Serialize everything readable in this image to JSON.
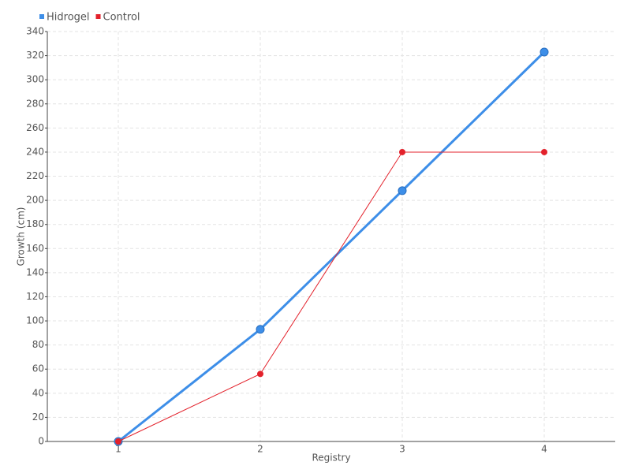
{
  "chart_data": {
    "type": "line",
    "x_label": "Registry",
    "y_label": "Growth (cm)",
    "categories": [
      "1",
      "2",
      "3",
      "4"
    ],
    "series": [
      {
        "name": "Hidrogel",
        "color": "#3d8ee8",
        "values": [
          0,
          93,
          208,
          323
        ]
      },
      {
        "name": "Control",
        "color": "#e3212b",
        "values": [
          0,
          56,
          240,
          240
        ]
      }
    ],
    "ylim": [
      0,
      340
    ],
    "yticks": [
      0,
      20,
      40,
      60,
      80,
      100,
      120,
      140,
      160,
      180,
      200,
      220,
      240,
      260,
      280,
      300,
      320,
      340
    ],
    "grid": true,
    "legend": "top-left"
  }
}
